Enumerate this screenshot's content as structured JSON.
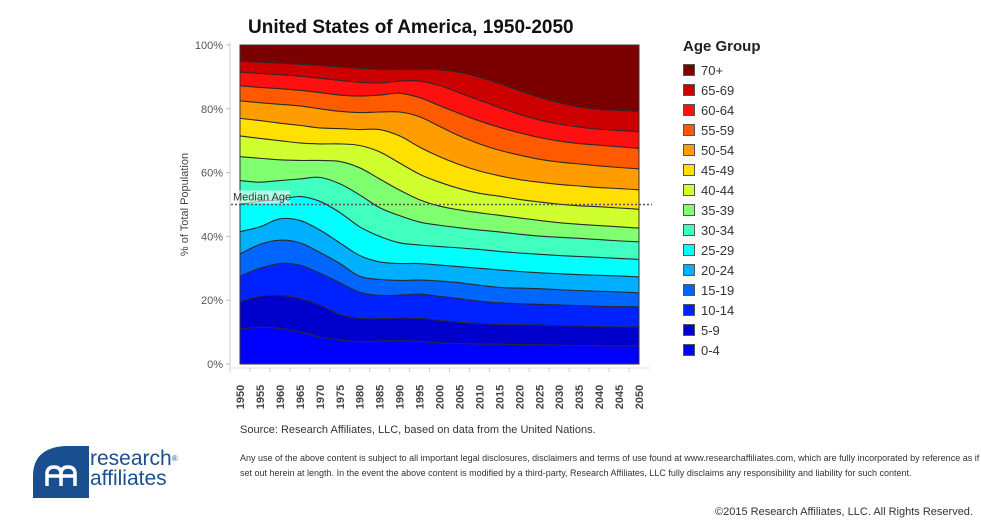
{
  "chart_data": {
    "type": "area",
    "stacked": true,
    "normalized": true,
    "title": "United States of America, 1950-2050",
    "xlabel": "",
    "ylabel": "% of Total Population",
    "ylim": [
      0,
      100
    ],
    "yticks": [
      "0%",
      "20%",
      "40%",
      "60%",
      "80%",
      "100%"
    ],
    "ytick_values": [
      0,
      20,
      40,
      60,
      80,
      100
    ],
    "x": [
      1950,
      1955,
      1960,
      1965,
      1970,
      1975,
      1980,
      1985,
      1990,
      1995,
      2000,
      2005,
      2010,
      2015,
      2020,
      2025,
      2030,
      2035,
      2040,
      2045,
      2050
    ],
    "legend_title": "Age Group",
    "legend_position": "right",
    "value_kind": "cumulative_top_percent",
    "series": [
      {
        "name": "0-4",
        "color": "#0000ff",
        "values": [
          11,
          11.5,
          11.2,
          10,
          8.5,
          7.5,
          7,
          7.2,
          7.3,
          7.1,
          6.6,
          6.4,
          6.3,
          6.2,
          6.1,
          6.0,
          5.9,
          5.8,
          5.7,
          5.7,
          5.7
        ]
      },
      {
        "name": "5-9",
        "color": "#0000cc",
        "values": [
          19.5,
          21.2,
          21.5,
          20.5,
          18.5,
          15.5,
          14.3,
          14.2,
          14.4,
          14.3,
          13.7,
          13.1,
          12.7,
          12.4,
          12.3,
          12.2,
          12.0,
          11.9,
          11.7,
          11.6,
          11.6
        ]
      },
      {
        "name": "10-14",
        "color": "#0022ff",
        "values": [
          27.5,
          30,
          31.5,
          31,
          28.5,
          25.5,
          22.5,
          21.5,
          21.6,
          21.9,
          21.2,
          20.5,
          19.7,
          19.2,
          18.9,
          18.7,
          18.5,
          18.3,
          18.1,
          18.0,
          17.9
        ]
      },
      {
        "name": "15-19",
        "color": "#0066ff",
        "values": [
          34.5,
          37.5,
          38.8,
          38,
          35,
          31.5,
          27.5,
          26.5,
          26.2,
          26.3,
          26.0,
          25.5,
          24.7,
          24.0,
          23.8,
          23.6,
          23.3,
          23.0,
          22.8,
          22.6,
          22.3
        ]
      },
      {
        "name": "20-24",
        "color": "#00b0ff",
        "values": [
          41.5,
          43,
          45.5,
          45,
          42,
          38,
          34,
          32,
          31.5,
          31.5,
          31.0,
          30.5,
          30.0,
          29.5,
          29.0,
          28.6,
          28.3,
          28.0,
          27.8,
          27.6,
          27.3
        ]
      },
      {
        "name": "25-29",
        "color": "#00ffff",
        "values": [
          50,
          51,
          51.5,
          52.5,
          51,
          47.5,
          43,
          40,
          38,
          37.3,
          36.8,
          36.4,
          35.9,
          35.3,
          34.8,
          34.4,
          34.0,
          33.7,
          33.4,
          33.1,
          32.8
        ]
      },
      {
        "name": "30-34",
        "color": "#40ffbf",
        "values": [
          57.5,
          57,
          57.5,
          58,
          58.5,
          56.5,
          53,
          49,
          46.5,
          44.5,
          43.5,
          42.7,
          42.0,
          41.4,
          40.7,
          40.1,
          39.7,
          39.4,
          39.0,
          38.6,
          38.3
        ]
      },
      {
        "name": "35-39",
        "color": "#80ff70",
        "values": [
          65,
          64.5,
          64,
          63.8,
          63.8,
          63.5,
          61.5,
          58,
          54.5,
          51.5,
          49.5,
          48.3,
          47.4,
          46.6,
          45.8,
          45.0,
          44.3,
          43.8,
          43.4,
          43.0,
          42.6
        ]
      },
      {
        "name": "40-44",
        "color": "#d0ff30",
        "values": [
          71.5,
          70.7,
          70,
          69.3,
          69,
          69,
          68.5,
          66.5,
          63,
          59.5,
          57,
          55,
          53.5,
          52.6,
          51.6,
          50.8,
          50.1,
          49.6,
          49.3,
          48.9,
          48.5
        ]
      },
      {
        "name": "45-49",
        "color": "#ffe000",
        "values": [
          77,
          76.3,
          75.5,
          74.8,
          74,
          73.8,
          73.5,
          73.5,
          71.5,
          68,
          65,
          62.5,
          60.5,
          59,
          57.8,
          57,
          56.3,
          55.8,
          55.3,
          55.0,
          54.6
        ]
      },
      {
        "name": "50-54",
        "color": "#ff9c00",
        "values": [
          82.5,
          81.9,
          81.4,
          80.9,
          80.0,
          79.2,
          78.8,
          79.0,
          79.0,
          77.5,
          74.5,
          71.5,
          69,
          67,
          65.5,
          64.2,
          63.3,
          62.7,
          62.1,
          61.6,
          61.2
        ]
      },
      {
        "name": "55-59",
        "color": "#ff5a00",
        "values": [
          87.2,
          86.7,
          86.3,
          85.8,
          85.1,
          84.3,
          84.0,
          84.3,
          84.9,
          83.5,
          81.0,
          78.5,
          76.2,
          74.2,
          72.5,
          71.0,
          69.9,
          69.1,
          68.6,
          68.1,
          67.6
        ]
      },
      {
        "name": "60-64",
        "color": "#ff1010",
        "values": [
          91.5,
          91.1,
          90.7,
          90.2,
          89.6,
          88.9,
          88.3,
          88.1,
          88.7,
          88.7,
          87.3,
          85.0,
          82.7,
          80.4,
          78.3,
          76.5,
          75.2,
          74.3,
          73.6,
          73.2,
          72.8
        ]
      },
      {
        "name": "65-69",
        "color": "#cc0000",
        "values": [
          95.0,
          94.6,
          94.3,
          94.0,
          93.6,
          93.1,
          92.7,
          92.3,
          92.3,
          92.4,
          92.2,
          91.4,
          89.9,
          87.9,
          85.7,
          83.6,
          81.9,
          80.6,
          79.8,
          79.5,
          79.2
        ]
      },
      {
        "name": "70+",
        "color": "#7a0000",
        "values": [
          100,
          100,
          100,
          100,
          100,
          100,
          100,
          100,
          100,
          100,
          100,
          100,
          100,
          100,
          100,
          100,
          100,
          100,
          100,
          100,
          100
        ]
      }
    ],
    "annotations": [
      {
        "text": "Median Age",
        "y": 50,
        "style": "dotted-line"
      }
    ]
  },
  "footer": {
    "source": "Source: Research Affiliates, LLC, based on data from the United Nations.",
    "disclaimer": "Any use of the above content is subject to all important legal disclosures, disclaimers and terms of use found at www.researchaffiliates.com, which are fully incorporated by reference as if set out herein at length. In the event the above content is modified by a third-party, Research Affiliates, LLC fully disclaims any responsibility and liability for such content.",
    "copyright": "©2015 Research Affiliates, LLC. All Rights Reserved."
  },
  "logo": {
    "line1": "research",
    "line2": "affiliates",
    "reg": "®",
    "color": "#1a4f8f"
  }
}
